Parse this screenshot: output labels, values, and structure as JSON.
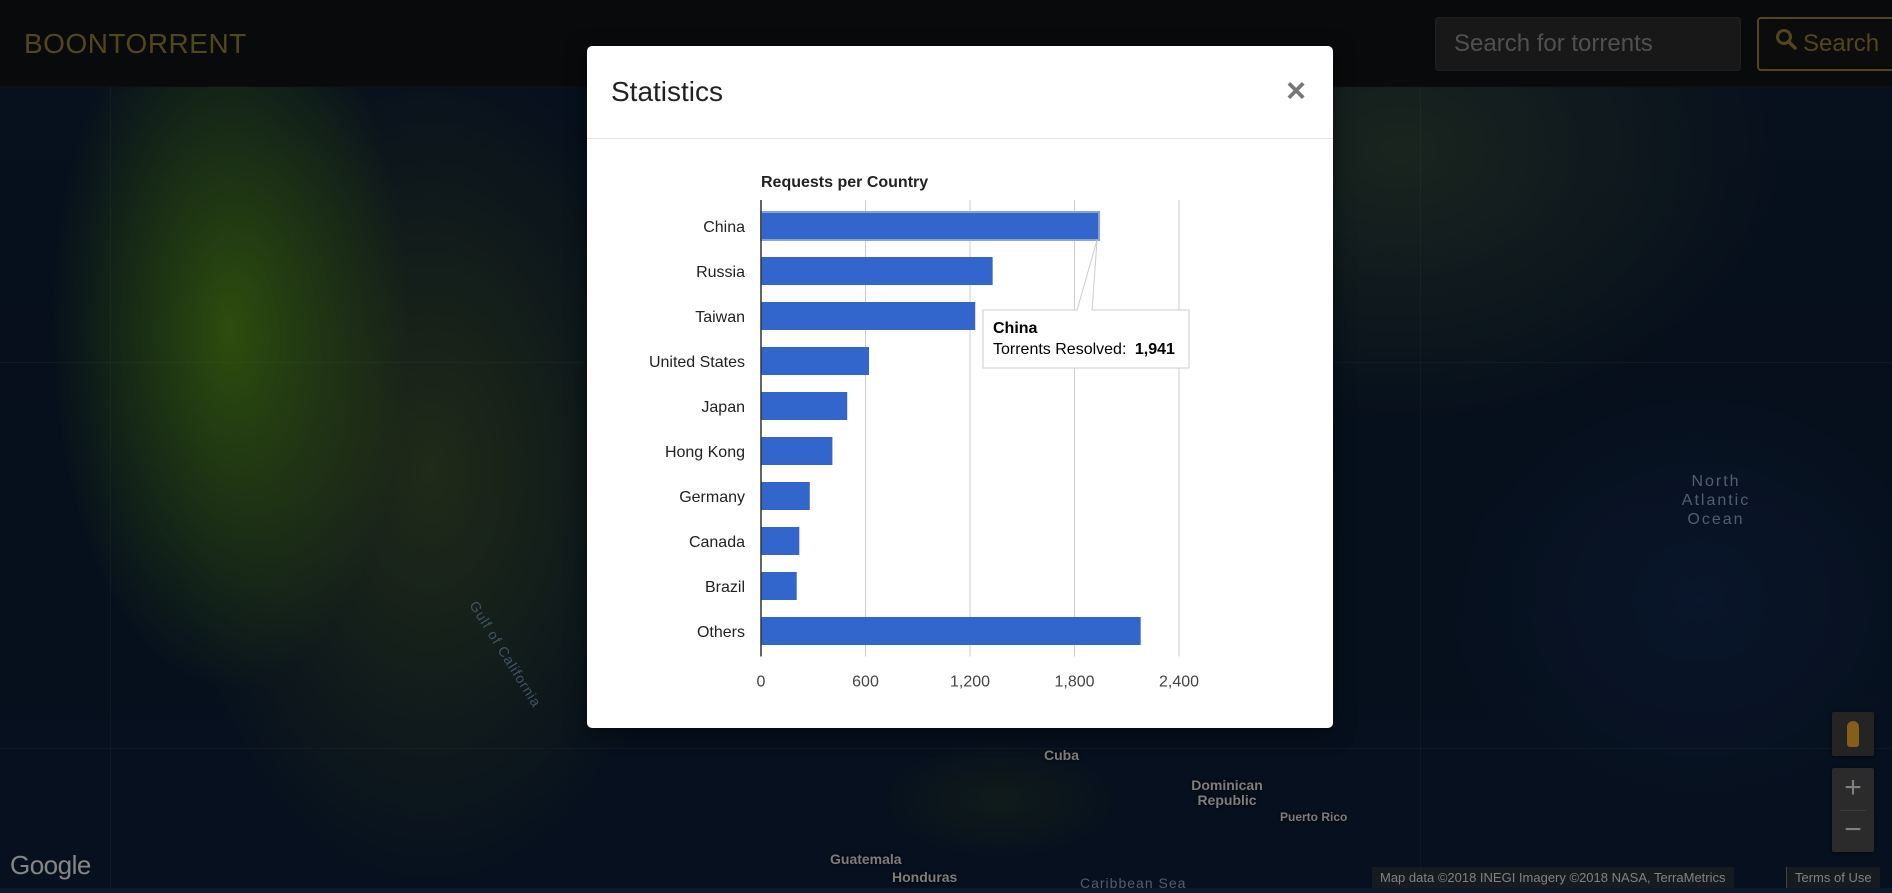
{
  "navbar": {
    "brand": "BOONTORRENT",
    "search_placeholder": "Search for torrents",
    "search_label": "Search"
  },
  "map": {
    "labels": {
      "ocean": "North Atlantic Ocean",
      "gulf": "Gulf of California",
      "cuba": "Cuba",
      "dominican": "Dominican Republic",
      "puerto_rico": "Puerto Rico",
      "guatemala": "Guatemala",
      "honduras": "Honduras",
      "caribbean": "Caribbean Sea"
    },
    "google_logo": "Google",
    "attribution": "Map data ©2018 INEGI Imagery ©2018 NASA, TerraMetrics",
    "terms": "Terms of Use",
    "zoom_in": "+",
    "zoom_out": "−"
  },
  "modal": {
    "title": "Statistics",
    "close_label": "×"
  },
  "chart_data": {
    "type": "bar",
    "orientation": "horizontal",
    "title": "Requests per Country",
    "categories": [
      "China",
      "Russia",
      "Taiwan",
      "United States",
      "Japan",
      "Hong Kong",
      "Germany",
      "Canada",
      "Brazil",
      "Others"
    ],
    "series": [
      {
        "values": [
          1941,
          1330,
          1230,
          620,
          495,
          410,
          280,
          220,
          205,
          2180
        ]
      }
    ],
    "xlim": [
      0,
      2400
    ],
    "xticks": [
      "0",
      "600",
      "1,200",
      "1,800",
      "2,400"
    ],
    "grid": true,
    "bar_color": "#3366cc",
    "tooltip": {
      "category": "China",
      "label": "Torrents Resolved:",
      "value": "1,941"
    }
  }
}
